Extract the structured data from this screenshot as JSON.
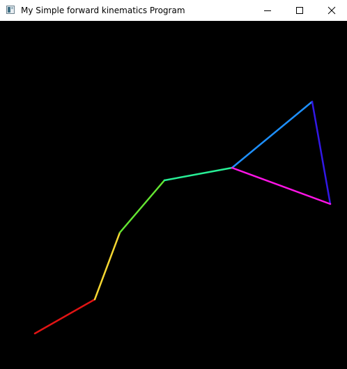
{
  "window": {
    "title": "My Simple forward kinematics Program",
    "controls": {
      "minimize_icon": "minimize-icon",
      "maximize_icon": "maximize-icon",
      "close_icon": "close-icon"
    }
  },
  "scene": {
    "background": "#000000",
    "links": [
      {
        "color": "#e01414"
      },
      {
        "color": "#f5d732"
      },
      {
        "color": "#64e632"
      },
      {
        "color": "#28ef96"
      },
      {
        "color": "#1e90ff"
      },
      {
        "color": "#3218e6"
      },
      {
        "color": "#ff14e6"
      }
    ]
  }
}
